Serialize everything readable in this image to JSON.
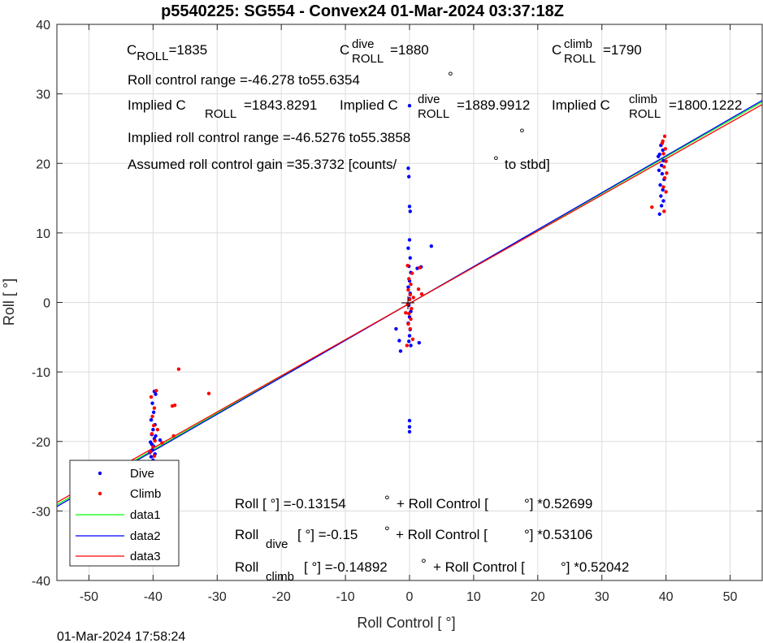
{
  "chart_data": {
    "type": "scatter",
    "title": "p5540225: SG554 - Convex24 01-Mar-2024 03:37:18Z",
    "xlabel": "Roll Control [   °]",
    "ylabel": "Roll [   °]",
    "xlim": [
      -55,
      55
    ],
    "ylim": [
      -40,
      40
    ],
    "xticks": [
      -50,
      -40,
      -30,
      -20,
      -10,
      0,
      10,
      20,
      30,
      40,
      50
    ],
    "yticks": [
      -40,
      -30,
      -20,
      -10,
      0,
      10,
      20,
      30,
      40
    ],
    "grid": true,
    "legend_placement": "bottom-left",
    "colors": {
      "dive": "#0000ff",
      "climb": "#ff0000",
      "data1": "#00ff00",
      "data2": "#0000ff",
      "data3": "#ff0000"
    },
    "series": [
      {
        "name": "Dive",
        "kind": "points",
        "color": "#0000ff",
        "points": [
          [
            -39.8,
            -12.8
          ],
          [
            -39.6,
            -13.2
          ],
          [
            -40.1,
            -14.5
          ],
          [
            -39.9,
            -15.8
          ],
          [
            -40.3,
            -16.9
          ],
          [
            -39.7,
            -17.6
          ],
          [
            -40.0,
            -18.3
          ],
          [
            -40.2,
            -19.0
          ],
          [
            -39.8,
            -19.6
          ],
          [
            -40.4,
            -20.1
          ],
          [
            -39.9,
            -20.7
          ],
          [
            -40.1,
            -21.2
          ],
          [
            -39.7,
            -21.8
          ],
          [
            -40.3,
            -22.2
          ],
          [
            -40.0,
            -22.7
          ],
          [
            -39.8,
            -23.1
          ],
          [
            -39.5,
            -23.3
          ],
          [
            -40.2,
            -20.4
          ],
          [
            -39.6,
            -19.2
          ],
          [
            -38.9,
            -19.8
          ],
          [
            -40.5,
            -21.6
          ],
          [
            -0.2,
            19.3
          ],
          [
            -0.1,
            18.1
          ],
          [
            0.0,
            13.8
          ],
          [
            0.1,
            13.1
          ],
          [
            0.0,
            9.0
          ],
          [
            -0.2,
            7.8
          ],
          [
            0.1,
            6.4
          ],
          [
            -0.1,
            5.2
          ],
          [
            0.2,
            4.3
          ],
          [
            0.0,
            3.1
          ],
          [
            -0.2,
            2.2
          ],
          [
            0.1,
            1.3
          ],
          [
            0.0,
            0.5
          ],
          [
            -0.1,
            -0.4
          ],
          [
            0.2,
            -1.3
          ],
          [
            0.0,
            -2.1
          ],
          [
            -0.2,
            -3.0
          ],
          [
            0.1,
            -3.9
          ],
          [
            0.0,
            -4.8
          ],
          [
            -0.1,
            -5.6
          ],
          [
            0.2,
            -6.2
          ],
          [
            -1.6,
            -5.5
          ],
          [
            -2.1,
            -3.8
          ],
          [
            -1.4,
            -7.0
          ],
          [
            1.2,
            4.9
          ],
          [
            1.8,
            5.1
          ],
          [
            3.4,
            8.1
          ],
          [
            0.0,
            -17.0
          ],
          [
            0.0,
            -17.9
          ],
          [
            0.0,
            -18.6
          ],
          [
            1.5,
            -5.8
          ],
          [
            0.0,
            28.3
          ],
          [
            39.2,
            22.6
          ],
          [
            39.5,
            21.9
          ],
          [
            39.0,
            21.3
          ],
          [
            39.6,
            20.4
          ],
          [
            39.3,
            19.7
          ],
          [
            38.9,
            19.0
          ],
          [
            39.4,
            18.5
          ],
          [
            39.7,
            17.7
          ],
          [
            39.1,
            16.9
          ],
          [
            39.5,
            16.2
          ],
          [
            39.2,
            15.3
          ],
          [
            39.6,
            14.6
          ],
          [
            39.3,
            13.9
          ],
          [
            39.0,
            12.7
          ],
          [
            38.8,
            21.0
          ]
        ]
      },
      {
        "name": "Climb",
        "kind": "points",
        "color": "#ff0000",
        "points": [
          [
            -36.0,
            -9.6
          ],
          [
            -31.3,
            -13.1
          ],
          [
            -37.0,
            -14.9
          ],
          [
            -36.6,
            -14.8
          ],
          [
            -36.8,
            -19.2
          ],
          [
            -40.3,
            -13.6
          ],
          [
            -39.8,
            -15.2
          ],
          [
            -40.1,
            -16.4
          ],
          [
            -39.9,
            -17.7
          ],
          [
            -40.2,
            -18.9
          ],
          [
            -39.7,
            -19.9
          ],
          [
            -40.0,
            -20.8
          ],
          [
            -40.4,
            -21.5
          ],
          [
            -39.8,
            -22.1
          ],
          [
            -40.1,
            -22.9
          ],
          [
            -38.6,
            -20.2
          ],
          [
            -39.3,
            -18.3
          ],
          [
            -39.5,
            -12.7
          ],
          [
            -0.3,
            5.3
          ],
          [
            0.4,
            4.2
          ],
          [
            -0.1,
            3.4
          ],
          [
            0.2,
            2.6
          ],
          [
            -0.2,
            1.8
          ],
          [
            0.1,
            1.1
          ],
          [
            0.0,
            0.4
          ],
          [
            -0.3,
            -0.3
          ],
          [
            0.3,
            -0.9
          ],
          [
            -0.1,
            -1.6
          ],
          [
            0.2,
            -2.4
          ],
          [
            -0.2,
            -3.1
          ],
          [
            0.1,
            -3.8
          ],
          [
            -0.4,
            -6.2
          ],
          [
            0.5,
            -5.3
          ],
          [
            1.4,
            1.9
          ],
          [
            1.9,
            1.2
          ],
          [
            1.6,
            5.0
          ],
          [
            -0.6,
            -1.5
          ],
          [
            0.6,
            0.7
          ],
          [
            39.8,
            23.9
          ],
          [
            39.5,
            23.2
          ],
          [
            39.9,
            22.1
          ],
          [
            39.6,
            21.4
          ],
          [
            40.0,
            20.3
          ],
          [
            39.7,
            19.5
          ],
          [
            40.1,
            18.6
          ],
          [
            39.8,
            17.9
          ],
          [
            39.6,
            16.6
          ],
          [
            40.0,
            15.9
          ],
          [
            39.7,
            13.1
          ],
          [
            37.8,
            13.7
          ],
          [
            39.4,
            22.9
          ]
        ]
      },
      {
        "name": "data1",
        "kind": "line",
        "color": "#00ff00",
        "intercept": -0.13154,
        "slope": 0.52699
      },
      {
        "name": "data2",
        "kind": "line",
        "color": "#0000ff",
        "intercept": -0.15,
        "slope": 0.53106
      },
      {
        "name": "data3",
        "kind": "line",
        "color": "#ff0000",
        "intercept": -0.14892,
        "slope": 0.52042
      }
    ],
    "legend": [
      "Dive",
      "Climb",
      "data1",
      "data2",
      "data3"
    ],
    "annotations": {
      "c_roll": {
        "base": "C",
        "sub": "ROLL",
        "value": "=1835"
      },
      "c_roll_dive": {
        "base": "C",
        "sup": "dive",
        "sub": "ROLL",
        "value": "=1880"
      },
      "c_roll_climb": {
        "base": "C",
        "sup": "climb",
        "sub": "ROLL",
        "value": "=1790"
      },
      "range": "Roll control range =-46.278 to55.6354",
      "range_deg": "°",
      "implied_prefix": "Implied C",
      "implied_sub": "ROLL",
      "implied_value": "=1843.8291",
      "implied_dive_prefix": "Implied C",
      "implied_dive_sup": "dive",
      "implied_dive_sub": "ROLL",
      "implied_dive_value": "=1889.9912",
      "implied_climb_prefix": "Implied C",
      "implied_climb_sup": "climb",
      "implied_climb_sub": "ROLL",
      "implied_climb_value": "=1800.1222",
      "implied_range": "Implied roll control range =-46.5276 to55.3858",
      "implied_range_deg": "°",
      "gain_a": "Assumed roll control gain =35.3732 [counts/",
      "gain_deg": "°",
      "gain_b": "to stbd]",
      "fit_all_a": "Roll [  °] =-0.13154",
      "fit_all_deg": "°",
      "fit_all_b": "+ Roll Control [",
      "fit_all_c": "°] *0.52699",
      "fit_dive_a": "Roll",
      "fit_dive_sub": "dive",
      "fit_dive_b": "[  °] =-0.15",
      "fit_dive_deg": "°",
      "fit_dive_c": "+ Roll Control [",
      "fit_dive_d": "°] *0.53106",
      "fit_climb_a": "Roll",
      "fit_climb_sub": "climb",
      "fit_climb_b": "[  °] =-0.14892",
      "fit_climb_deg": "°",
      "fit_climb_c": "+ Roll Control [",
      "fit_climb_d": "°] *0.52042"
    },
    "footer": "01-Mar-2024 17:58:24"
  }
}
